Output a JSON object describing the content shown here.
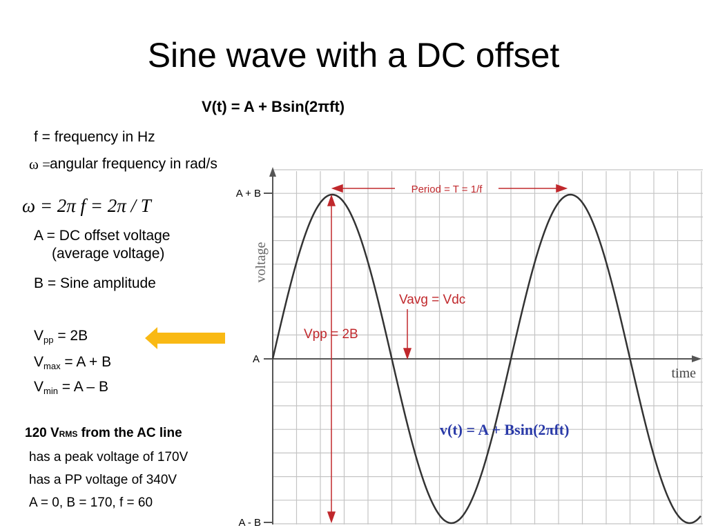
{
  "title": "Sine wave with a DC offset",
  "formula": "V(t) = A + Bsin(2πft)",
  "definitions": {
    "frequency": "f = frequency in Hz",
    "omega_symbol": "ω =",
    "omega": "angular frequency in rad/s",
    "omega_equation": "ω = 2π f = 2π / T",
    "offset": "A = DC offset voltage (average voltage)",
    "amplitude": "B = Sine amplitude"
  },
  "relations": [
    {
      "symbol": "V",
      "subscript": "pp",
      "rest": " = 2B"
    },
    {
      "symbol": "V",
      "subscript": "max",
      "rest": " = A + B"
    },
    {
      "symbol": "V",
      "subscript": "min",
      "rest": " = A – B"
    }
  ],
  "example": {
    "heading": {
      "symbol": "120 V",
      "subscript": "RMS",
      "rest": " from the AC line"
    },
    "lines": [
      "has a peak voltage of 170V",
      "has a PP voltage of 340V",
      "A = 0, B = 170, f = 60"
    ]
  },
  "diagram": {
    "y_labels": [
      "A + B",
      "A",
      "A - B"
    ],
    "y_axis_label": "voltage",
    "x_axis_label": "time",
    "period_label": "Period = T = 1/f",
    "average_label": "Vavg = Vdc",
    "peak_to_peak_label": "Vpp = 2B",
    "equation": "v(t) = A + Bsin(2πft)"
  }
}
